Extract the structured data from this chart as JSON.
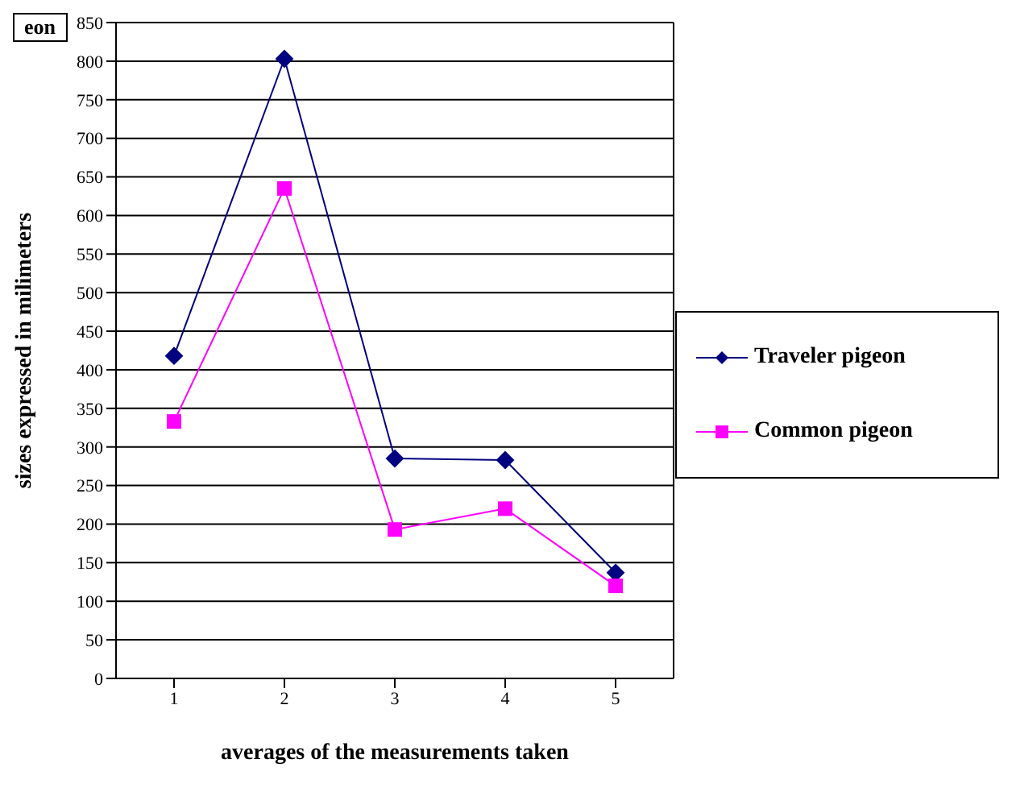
{
  "chart_data": {
    "type": "line",
    "xlabel": "averages of the measurements taken",
    "ylabel": "sizes expressed in milimeters",
    "annotations": [
      "eon"
    ],
    "categories": [
      "1",
      "2",
      "3",
      "4",
      "5"
    ],
    "series": [
      {
        "name": "Traveler pigeon",
        "color": "#000080",
        "marker": "diamond",
        "values": [
          418,
          803,
          285,
          283,
          137
        ]
      },
      {
        "name": "Common pigeon",
        "color": "#ff00ff",
        "marker": "square",
        "values": [
          333,
          635,
          193,
          220,
          120
        ]
      }
    ],
    "ylim": [
      0,
      850
    ],
    "yticks": [
      0,
      50,
      100,
      150,
      200,
      250,
      300,
      350,
      400,
      450,
      500,
      550,
      600,
      650,
      700,
      750,
      800,
      850
    ],
    "grid": "y",
    "legend": "right",
    "line_style": "solid"
  }
}
